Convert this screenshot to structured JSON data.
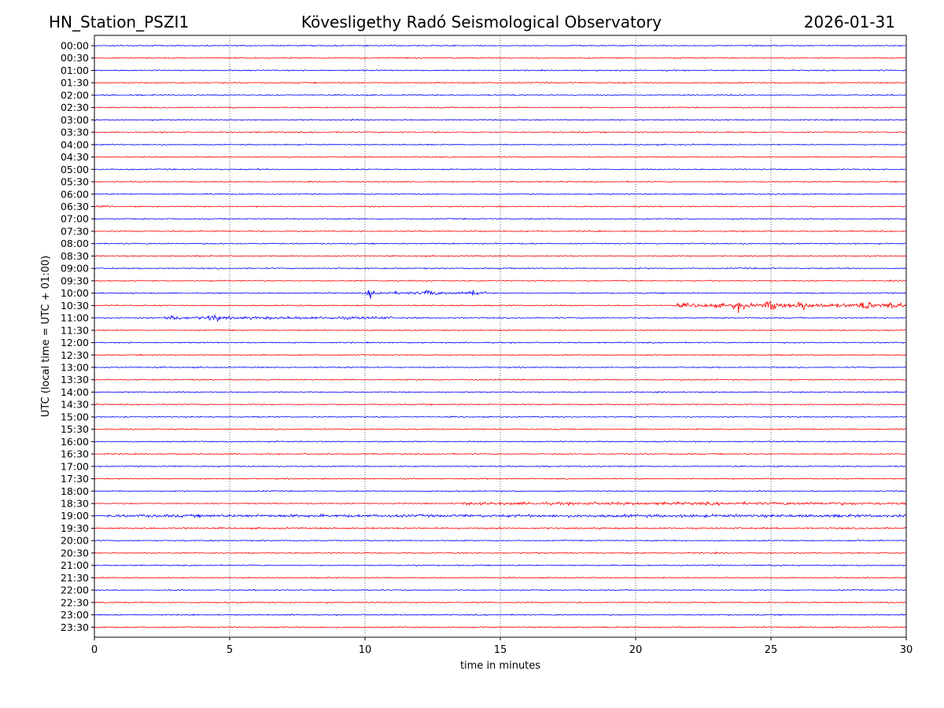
{
  "header": {
    "station": "HN_Station_PSZI1",
    "observatory": "Kövesligethy Radó Seismological Observatory",
    "date": "2026-01-31"
  },
  "chart_data": {
    "type": "line",
    "title": "Kövesligethy Radó Seismological Observatory",
    "xlabel": "time in minutes",
    "ylabel": "UTC (local time = UTC + 01:00)",
    "xlim": [
      0,
      30
    ],
    "x_ticks": [
      0,
      5,
      10,
      15,
      20,
      25,
      30
    ],
    "grid": "vertical dotted at every 5 minutes",
    "series_colors": [
      "#0000ff",
      "#ff0000"
    ],
    "rows": [
      "00:00",
      "00:30",
      "01:00",
      "01:30",
      "02:00",
      "02:30",
      "03:00",
      "03:30",
      "04:00",
      "04:30",
      "05:00",
      "05:30",
      "06:00",
      "06:30",
      "07:00",
      "07:30",
      "08:00",
      "08:30",
      "09:00",
      "09:30",
      "10:00",
      "10:30",
      "11:00",
      "11:30",
      "12:00",
      "12:30",
      "13:00",
      "13:30",
      "14:00",
      "14:30",
      "15:00",
      "15:30",
      "16:00",
      "16:30",
      "17:00",
      "17:30",
      "18:00",
      "18:30",
      "19:00",
      "19:30",
      "20:00",
      "20:30",
      "21:00",
      "21:30",
      "22:00",
      "22:30",
      "23:00",
      "23:30"
    ],
    "events": [
      {
        "row": "10:00",
        "start_min": 10.0,
        "end_min": 14.5,
        "peaks_min": [
          10.2,
          12.4,
          14.0
        ],
        "amplitude": "moderate"
      },
      {
        "row": "10:30",
        "start_min": 21.5,
        "end_min": 30.0,
        "peaks_min": [
          23.8,
          25.0,
          26.2,
          28.5,
          29.5
        ],
        "amplitude": "strong"
      },
      {
        "row": "11:00",
        "start_min": 2.5,
        "end_min": 11.0,
        "peaks_min": [
          2.9,
          4.4
        ],
        "amplitude": "moderate"
      },
      {
        "row": "18:30",
        "start_min": 13.5,
        "end_min": 30.0,
        "amplitude": "moderate"
      },
      {
        "row": "19:00",
        "start_min": 0.5,
        "end_min": 30.0,
        "amplitude": "moderate"
      },
      {
        "row": "19:30",
        "start_min": 0.5,
        "end_min": 30.0,
        "amplitude": "light"
      },
      {
        "row": "06:30",
        "start_min": 0.0,
        "end_min": 0.6,
        "amplitude": "light"
      },
      {
        "row": "08:00",
        "start_min": 12.3,
        "end_min": 13.3,
        "amplitude": "light"
      },
      {
        "row": "21:00",
        "start_min": 24.5,
        "end_min": 25.6,
        "amplitude": "light"
      }
    ]
  }
}
